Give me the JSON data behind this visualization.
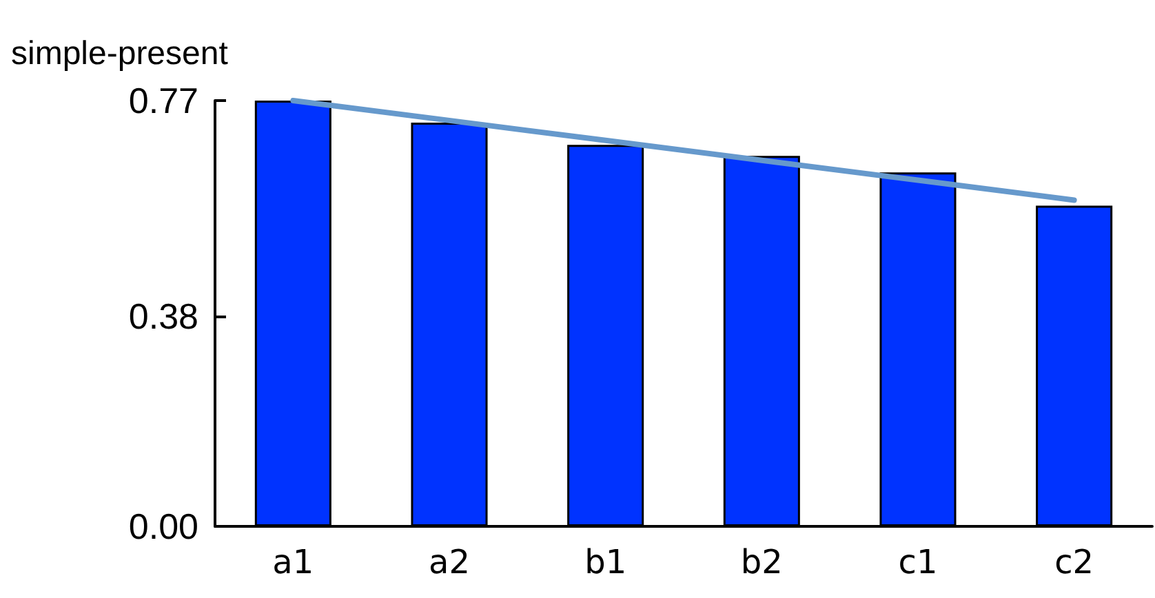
{
  "chart_data": {
    "type": "bar",
    "ylabel": "simple-present",
    "categories": [
      "a1",
      "a2",
      "b1",
      "b2",
      "c1",
      "c2"
    ],
    "series": [
      {
        "color": "#0033ff",
        "values": [
          0.77,
          0.73,
          0.69,
          0.67,
          0.64,
          0.58
        ]
      },
      {
        "type": "line",
        "color": "#6699cc",
        "values": [
          0.77,
          0.734,
          0.698,
          0.662,
          0.626,
          0.59
        ]
      }
    ],
    "ylim": [
      0,
      0.77
    ],
    "yticks": [
      {
        "value": 0,
        "label": "0.00"
      },
      {
        "value": 0.38,
        "label": "0.38"
      },
      {
        "value": 0.77,
        "label": "0.77"
      }
    ],
    "grid": false,
    "marker": "none",
    "line_style": "solid"
  }
}
